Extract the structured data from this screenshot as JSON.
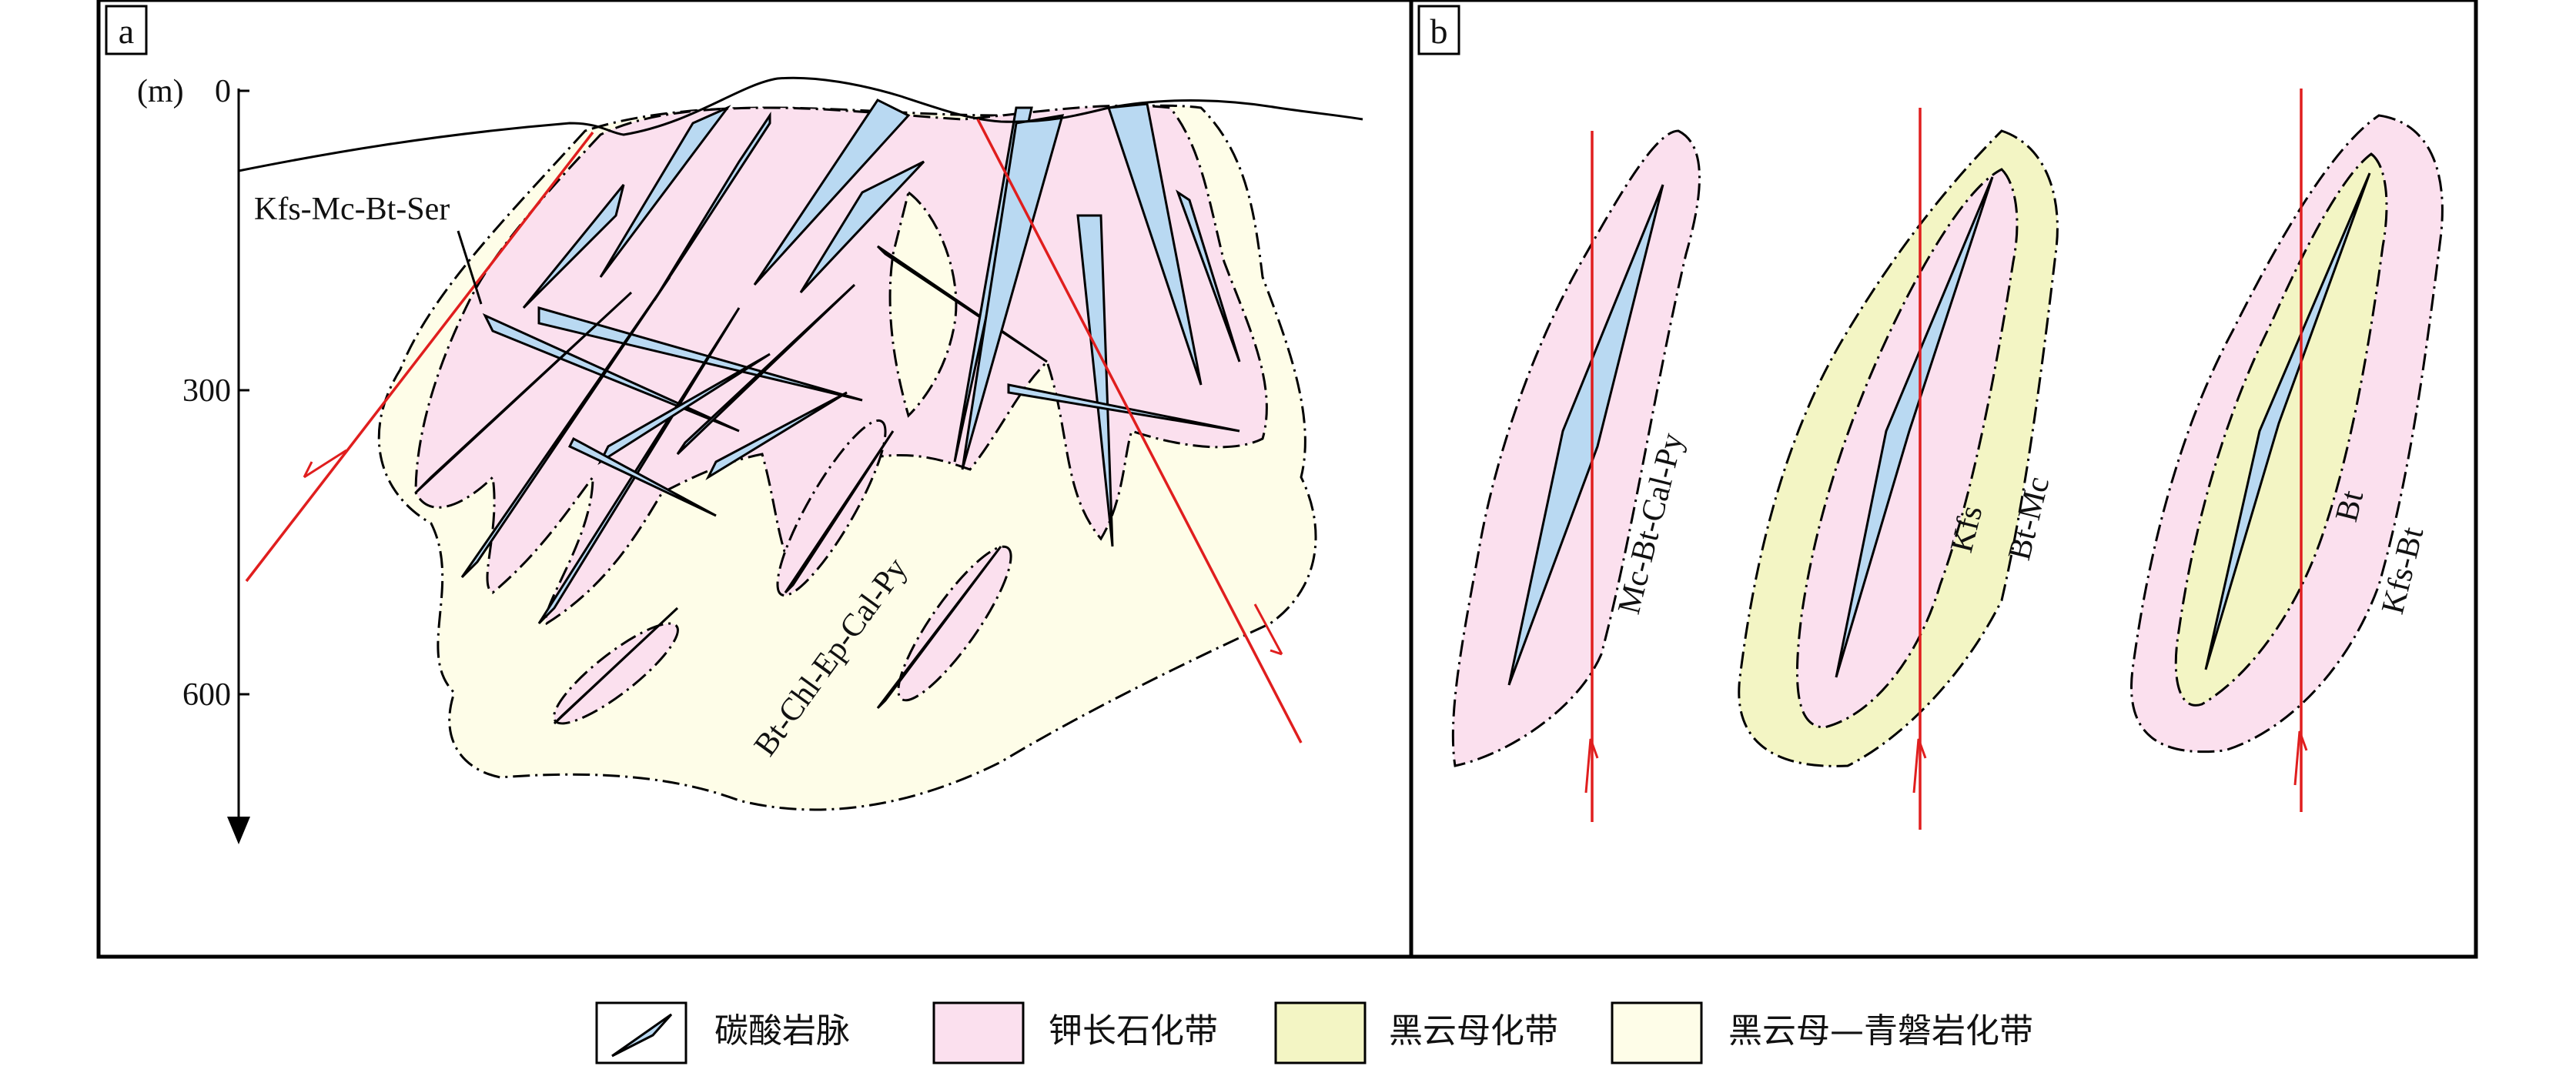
{
  "panels": {
    "a": {
      "label": "a",
      "axis": {
        "unit": "(m)",
        "ticks": [
          "0",
          "300",
          "600"
        ]
      },
      "labels": {
        "outer_zone": "Kfs-Mc-Bt-Ser",
        "main_zone": "Bt-Chl-Ep-Cal-Py"
      }
    },
    "b": {
      "label": "b",
      "bodies": [
        {
          "labels": [
            "Mc-Bt-Cal-Py"
          ]
        },
        {
          "labels": [
            "Kfs",
            "Bt-Mc"
          ]
        },
        {
          "labels": [
            "Bt",
            "Kfs-Bt"
          ]
        }
      ]
    }
  },
  "legend": [
    {
      "label": "碳酸岩脉",
      "icon": "carbonatite-vein-icon",
      "color": "#b9d9f2"
    },
    {
      "label": "钾长石化带",
      "icon": "swatch",
      "color": "#fbe0ee"
    },
    {
      "label": "黑云母化带",
      "icon": "swatch",
      "color": "#f3f5c4"
    },
    {
      "label": "黑云母—青磐岩化带",
      "icon": "swatch",
      "color": "#fefde8"
    }
  ],
  "colors": {
    "vein": "#b9d9f2",
    "k_feldspar": "#fbe0ee",
    "biotite": "#f3f5c4",
    "propylitic": "#fefde8",
    "fault": "#e01e1e"
  }
}
